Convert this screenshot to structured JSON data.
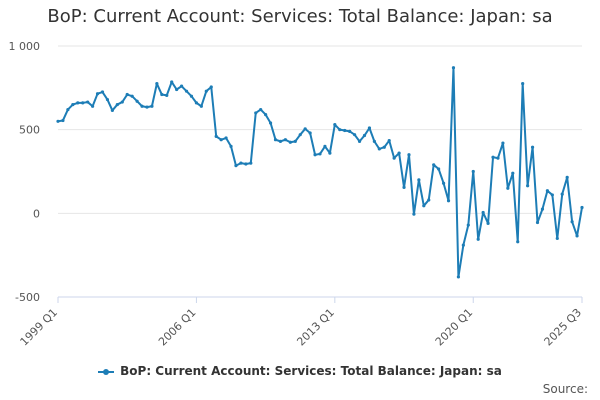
{
  "title": "BoP: Current Account: Services: Total Balance: Japan: sa",
  "source_label": "Source:",
  "chart_data": {
    "type": "line",
    "title": "BoP: Current Account: Services: Total Balance: Japan: sa",
    "xlabel": "",
    "ylabel": "",
    "x_start": "1999 Q1",
    "x_end": "2025 Q3",
    "x_ticks": [
      "1999 Q1",
      "2006 Q1",
      "2013 Q1",
      "2020 Q1",
      "2025 Q3"
    ],
    "y_ticks": [
      -500,
      0,
      500,
      1000
    ],
    "y_tick_labels": [
      "-500",
      "0",
      "500",
      "1 000"
    ],
    "ylim": [
      -500,
      1000
    ],
    "grid": true,
    "legend_position": "bottom",
    "color": "#1d7db6",
    "series": [
      {
        "name": "BoP: Current Account: Services: Total Balance: Japan: sa",
        "values": [
          550,
          555,
          620,
          650,
          660,
          660,
          665,
          640,
          715,
          725,
          680,
          615,
          650,
          665,
          710,
          700,
          670,
          640,
          635,
          640,
          775,
          710,
          705,
          785,
          740,
          760,
          730,
          700,
          660,
          640,
          730,
          755,
          460,
          440,
          450,
          400,
          285,
          300,
          295,
          300,
          600,
          620,
          590,
          540,
          440,
          430,
          440,
          425,
          430,
          470,
          505,
          480,
          350,
          355,
          400,
          360,
          530,
          500,
          495,
          490,
          470,
          430,
          465,
          510,
          430,
          385,
          395,
          435,
          330,
          360,
          155,
          350,
          -5,
          200,
          45,
          80,
          290,
          265,
          180,
          75,
          870,
          -380,
          -190,
          -70,
          250,
          -155,
          5,
          -60,
          335,
          330,
          420,
          150,
          240,
          -170,
          775,
          165,
          395,
          -55,
          25,
          135,
          110,
          -150,
          115,
          215,
          -50,
          -135,
          35
        ]
      }
    ]
  }
}
